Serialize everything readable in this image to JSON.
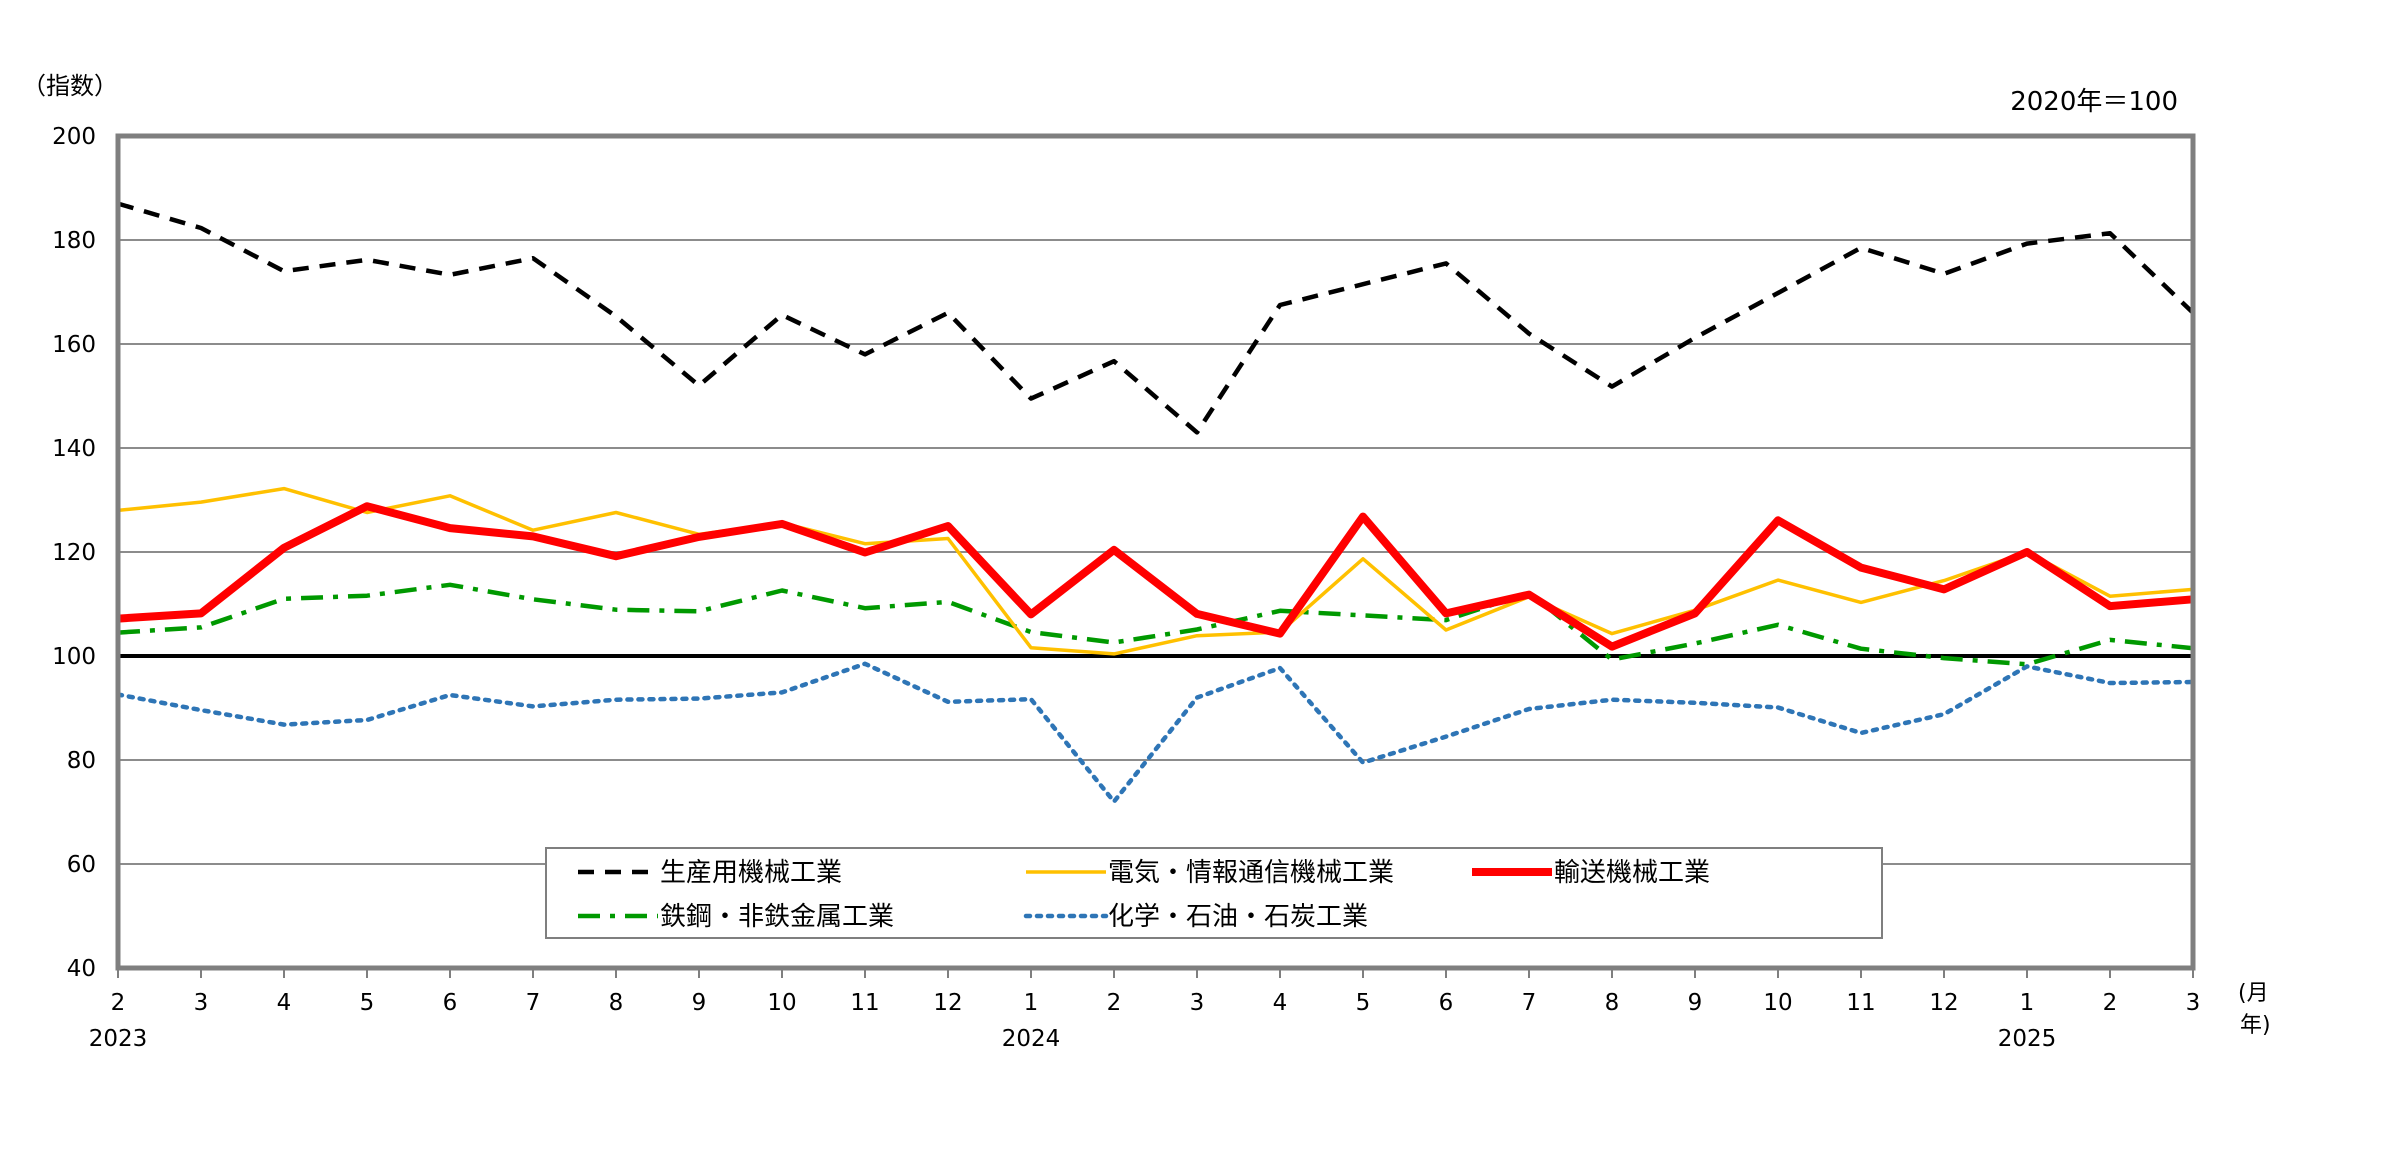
{
  "chart_data": {
    "type": "line",
    "ylabel": "（指数）",
    "base_note": "2020年＝100",
    "x_unit_label_month": "(月",
    "x_unit_label_year": "年)",
    "ylim": [
      40,
      200
    ],
    "yticks": [
      40,
      60,
      80,
      100,
      120,
      140,
      160,
      180,
      200
    ],
    "grid": true,
    "reference_line": 100,
    "legend_position": "bottom-center",
    "month_labels": [
      "2",
      "3",
      "4",
      "5",
      "6",
      "7",
      "8",
      "9",
      "10",
      "11",
      "12",
      "1",
      "2",
      "3",
      "4",
      "5",
      "6",
      "7",
      "8",
      "9",
      "10",
      "11",
      "12",
      "1",
      "2",
      "3"
    ],
    "year_labels": [
      {
        "index": 0,
        "label": "2023"
      },
      {
        "index": 11,
        "label": "2024"
      },
      {
        "index": 23,
        "label": "2025"
      }
    ],
    "x": [
      "2023-02",
      "2023-03",
      "2023-04",
      "2023-05",
      "2023-06",
      "2023-07",
      "2023-08",
      "2023-09",
      "2023-10",
      "2023-11",
      "2023-12",
      "2024-01",
      "2024-02",
      "2024-03",
      "2024-04",
      "2024-05",
      "2024-06",
      "2024-07",
      "2024-08",
      "2024-09",
      "2024-10",
      "2024-11",
      "2024-12",
      "2025-01",
      "2025-02",
      "2025-03"
    ],
    "series": [
      {
        "name": "生産用機械工業",
        "color": "#000000",
        "style": "dashed",
        "values": [
          187.0,
          182.3,
          174.0,
          176.2,
          173.3,
          176.5,
          165.3,
          152.0,
          165.6,
          158.0,
          166.0,
          149.5,
          156.7,
          143.0,
          167.5,
          171.5,
          175.5,
          162.0,
          151.8,
          161.2,
          169.8,
          178.5,
          173.5,
          179.3,
          181.3,
          166.0
        ]
      },
      {
        "name": "電気・情報通信機械工業",
        "color": "#FFC000",
        "style": "solid",
        "values": [
          128.0,
          129.6,
          132.2,
          127.6,
          130.8,
          124.2,
          127.6,
          123.4,
          125.6,
          121.6,
          122.6,
          101.6,
          100.4,
          103.9,
          104.6,
          118.7,
          105.0,
          111.4,
          104.3,
          108.8,
          114.6,
          110.3,
          114.5,
          120.0,
          111.5,
          112.8
        ]
      },
      {
        "name": "輸送機械工業",
        "color": "#FF0000",
        "style": "thick",
        "values": [
          107.2,
          108.2,
          120.8,
          128.8,
          124.6,
          123.0,
          119.2,
          122.9,
          125.4,
          119.9,
          125.0,
          108.0,
          120.4,
          108.1,
          104.3,
          126.8,
          108.2,
          111.8,
          101.8,
          108.2,
          126.1,
          117.0,
          112.8,
          120.0,
          109.6,
          110.9
        ]
      },
      {
        "name": "鉄鋼・非鉄金属工業",
        "color": "#009900",
        "style": "dashdot",
        "values": [
          104.5,
          105.5,
          111.0,
          111.6,
          113.7,
          110.9,
          108.9,
          108.6,
          112.6,
          109.2,
          110.4,
          104.6,
          102.6,
          105.1,
          108.7,
          107.8,
          106.9,
          112.2,
          99.3,
          102.4,
          106.0,
          101.4,
          99.6,
          98.4,
          103.1,
          101.5
        ]
      },
      {
        "name": "化学・石油・石炭工業",
        "color": "#2E75B6",
        "style": "dotted",
        "values": [
          92.6,
          89.6,
          86.8,
          87.7,
          92.5,
          90.3,
          91.6,
          91.8,
          93.0,
          98.5,
          91.2,
          91.7,
          72.0,
          92.0,
          97.7,
          79.5,
          84.5,
          89.8,
          91.6,
          91.0,
          90.1,
          85.2,
          88.8,
          98.0,
          94.8,
          95.0
        ]
      }
    ]
  }
}
